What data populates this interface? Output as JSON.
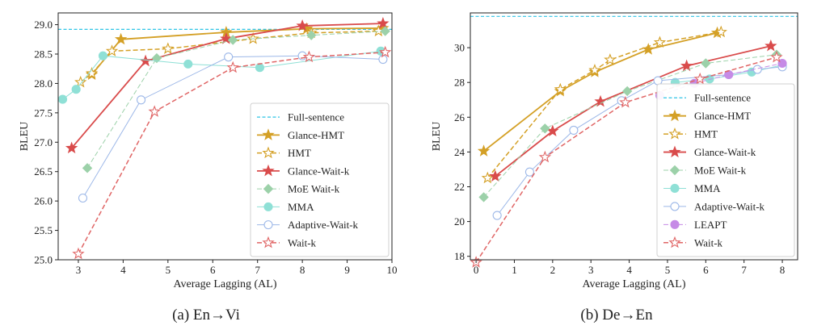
{
  "captions": [
    "(a)  En→Vi",
    "(b)  De→En"
  ],
  "chart_data": [
    {
      "type": "line",
      "caption": "(a)  En→Vi",
      "xlabel": "Average Lagging (AL)",
      "ylabel": "BLEU",
      "xlim": [
        2.55,
        10.0
      ],
      "ylim": [
        25.0,
        29.2
      ],
      "xticks": [
        3,
        4,
        5,
        6,
        7,
        8,
        9,
        10
      ],
      "yticks": [
        25.0,
        25.5,
        26.0,
        26.5,
        27.0,
        27.5,
        28.0,
        28.5,
        29.0
      ],
      "ytick_labels": [
        "25.0",
        "25.5",
        "26.0",
        "26.5",
        "27.0",
        "27.5",
        "28.0",
        "28.5",
        "29.0"
      ],
      "legend_position": "lower-right",
      "grid": false,
      "baseline": {
        "name": "Full-sentence",
        "y": 28.92,
        "color": "#2ec4e6"
      },
      "series": [
        {
          "name": "Glance-HMT",
          "color": "#d4a026",
          "marker": "star",
          "filled": true,
          "dash": "solid",
          "lw": 1.8,
          "x": [
            3.3,
            3.95,
            6.3,
            8.1,
            9.8
          ],
          "y": [
            28.15,
            28.75,
            28.87,
            28.93,
            28.94
          ]
        },
        {
          "name": "HMT",
          "color": "#d4a026",
          "marker": "star",
          "filled": false,
          "dash": "dashed",
          "lw": 1.5,
          "x": [
            3.05,
            3.3,
            3.75,
            5.0,
            6.9,
            8.2,
            9.7
          ],
          "y": [
            28.02,
            28.17,
            28.55,
            28.59,
            28.76,
            28.86,
            28.89
          ]
        },
        {
          "name": "Glance-Wait-k",
          "color": "#d94b4b",
          "marker": "star",
          "filled": true,
          "dash": "solid",
          "lw": 1.8,
          "x": [
            2.85,
            4.5,
            6.3,
            8.0,
            9.8
          ],
          "y": [
            26.9,
            28.38,
            28.76,
            28.98,
            29.02
          ]
        },
        {
          "name": "MoE Wait-k",
          "color": "#9cd1a9",
          "marker": "diamond",
          "filled": true,
          "dash": "dashed",
          "lw": 1.0,
          "x": [
            3.2,
            4.75,
            6.45,
            8.2,
            9.85
          ],
          "y": [
            26.56,
            28.43,
            28.74,
            28.82,
            28.89
          ]
        },
        {
          "name": "MMA",
          "color": "#8fe0d6",
          "marker": "circle",
          "filled": true,
          "dash": "solid",
          "lw": 1.0,
          "x": [
            2.65,
            2.95,
            3.55,
            5.45,
            7.05,
            9.75
          ],
          "y": [
            27.73,
            27.9,
            28.47,
            28.33,
            28.27,
            28.55
          ]
        },
        {
          "name": "Adaptive-Wait-k",
          "color": "#9db8e8",
          "marker": "circle",
          "filled": false,
          "dash": "solid",
          "lw": 1.0,
          "x": [
            3.1,
            4.4,
            6.35,
            8.0,
            9.8
          ],
          "y": [
            26.05,
            27.72,
            28.45,
            28.47,
            28.41
          ]
        },
        {
          "name": "Wait-k",
          "color": "#e06666",
          "marker": "star",
          "filled": false,
          "dash": "dashed",
          "lw": 1.5,
          "x": [
            3.0,
            4.7,
            6.45,
            8.15,
            9.85
          ],
          "y": [
            25.1,
            27.52,
            28.27,
            28.45,
            28.53
          ]
        }
      ]
    },
    {
      "type": "line",
      "caption": "(b)  De→En",
      "xlabel": "Average Lagging (AL)",
      "ylabel": "BLEU",
      "xlim": [
        -0.15,
        8.4
      ],
      "ylim": [
        17.8,
        32.0
      ],
      "xticks": [
        0,
        1,
        2,
        3,
        4,
        5,
        6,
        7,
        8
      ],
      "yticks": [
        18,
        20,
        22,
        24,
        26,
        28,
        30
      ],
      "ytick_labels": [
        "18",
        "20",
        "22",
        "24",
        "26",
        "28",
        "30"
      ],
      "legend_position": "lower-right",
      "grid": false,
      "baseline": {
        "name": "Full-sentence",
        "y": 31.8,
        "color": "#2ec4e6"
      },
      "series": [
        {
          "name": "Glance-HMT",
          "color": "#d4a026",
          "marker": "star",
          "filled": true,
          "dash": "solid",
          "lw": 1.8,
          "x": [
            0.2,
            2.2,
            3.1,
            4.5,
            6.3
          ],
          "y": [
            24.05,
            27.5,
            28.6,
            29.9,
            30.85
          ]
        },
        {
          "name": "HMT",
          "color": "#d4a026",
          "marker": "star",
          "filled": false,
          "dash": "dashed",
          "lw": 1.5,
          "x": [
            0.3,
            2.2,
            3.1,
            3.5,
            4.8,
            6.4
          ],
          "y": [
            22.5,
            27.6,
            28.7,
            29.3,
            30.3,
            30.9
          ]
        },
        {
          "name": "Glance-Wait-k",
          "color": "#d94b4b",
          "marker": "star",
          "filled": true,
          "dash": "solid",
          "lw": 1.8,
          "x": [
            0.5,
            2.0,
            3.25,
            5.5,
            7.7
          ],
          "y": [
            22.6,
            25.2,
            26.9,
            28.95,
            30.1
          ]
        },
        {
          "name": "MoE Wait-k",
          "color": "#9cd1a9",
          "marker": "diamond",
          "filled": true,
          "dash": "dashed",
          "lw": 1.0,
          "x": [
            0.2,
            1.8,
            3.95,
            6.0,
            7.85
          ],
          "y": [
            21.4,
            25.35,
            27.5,
            29.1,
            29.6
          ]
        },
        {
          "name": "MMA",
          "color": "#8fe0d6",
          "marker": "circle",
          "filled": true,
          "dash": "solid",
          "lw": 1.0,
          "x": [
            5.2,
            6.1,
            7.2,
            8.0
          ],
          "y": [
            28.0,
            28.2,
            28.6,
            29.0
          ]
        },
        {
          "name": "Adaptive-Wait-k",
          "color": "#9db8e8",
          "marker": "circle",
          "filled": false,
          "dash": "solid",
          "lw": 1.0,
          "x": [
            0.55,
            1.4,
            2.55,
            3.8,
            4.75,
            6.6,
            7.35,
            8.0
          ],
          "y": [
            20.35,
            22.85,
            25.25,
            26.95,
            28.1,
            28.45,
            28.75,
            28.9
          ]
        },
        {
          "name": "LEAPT",
          "color": "#c68be6",
          "marker": "circle",
          "filled": true,
          "dash": "dashed",
          "lw": 1.0,
          "x": [
            4.8,
            5.7,
            6.6,
            8.0
          ],
          "y": [
            27.25,
            27.95,
            28.45,
            29.1
          ]
        },
        {
          "name": "Wait-k",
          "color": "#e06666",
          "marker": "star",
          "filled": false,
          "dash": "dashed",
          "lw": 1.5,
          "x": [
            0.0,
            1.8,
            3.9,
            5.85,
            7.85
          ],
          "y": [
            17.65,
            23.7,
            26.85,
            28.2,
            29.45
          ]
        }
      ]
    }
  ]
}
